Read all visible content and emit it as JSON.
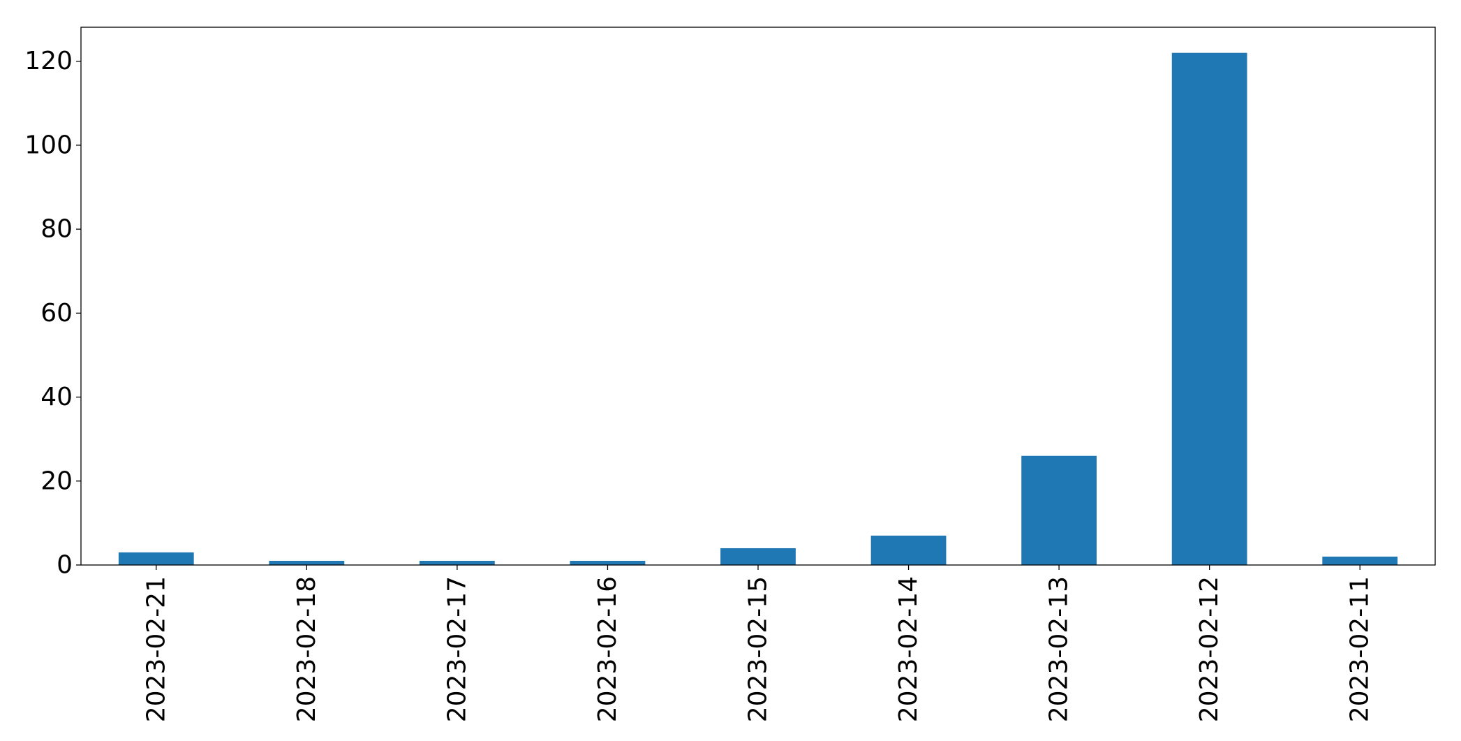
{
  "chart_data": {
    "type": "bar",
    "categories": [
      "2023-02-21",
      "2023-02-18",
      "2023-02-17",
      "2023-02-16",
      "2023-02-15",
      "2023-02-14",
      "2023-02-13",
      "2023-02-12",
      "2023-02-11"
    ],
    "values": [
      3,
      1,
      1,
      1,
      4,
      7,
      26,
      122,
      2
    ],
    "title": "",
    "xlabel": "",
    "ylabel": "",
    "ylim": [
      0,
      128.1
    ],
    "yticks": [
      "0",
      "20",
      "40",
      "60",
      "80",
      "100",
      "120"
    ],
    "grid": false,
    "legend": false,
    "bar_color": "#1f77b4"
  }
}
